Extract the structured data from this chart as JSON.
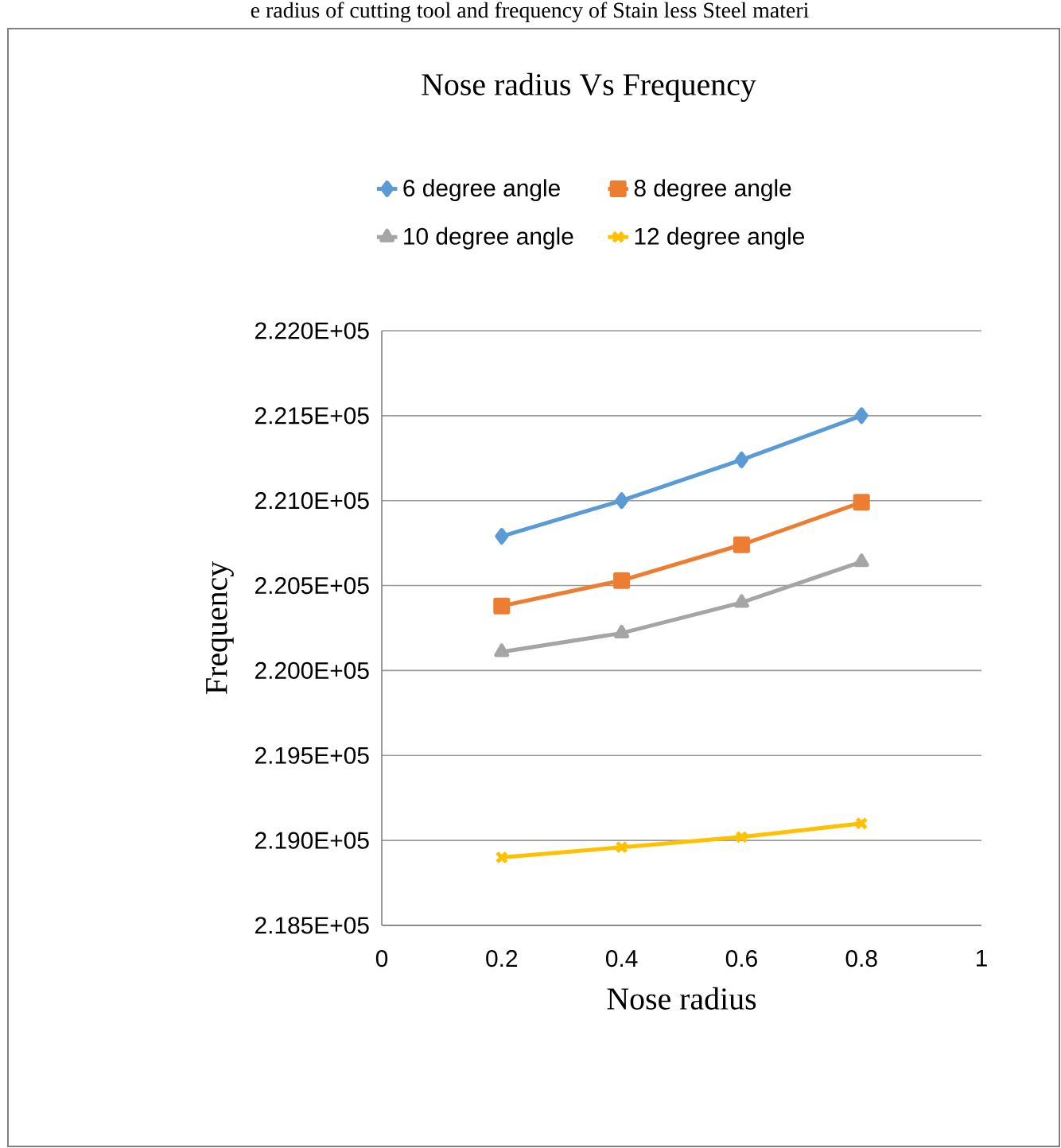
{
  "chart_data": {
    "type": "line",
    "title": "Nose radius Vs Frequency",
    "xlabel": "Nose radius",
    "ylabel": "Frequency",
    "annotations": [
      "e radius of cutting tool and frequency of Stain less Steel materi"
    ],
    "x": [
      0.2,
      0.4,
      0.6,
      0.8
    ],
    "series": [
      {
        "name": "6 degree angle",
        "color": "#5b9bd5",
        "marker": "diamond",
        "values": [
          220790,
          221000,
          221240,
          221500
        ]
      },
      {
        "name": "8 degree angle",
        "color": "#ed7d31",
        "marker": "square",
        "values": [
          220380,
          220530,
          220740,
          220990
        ]
      },
      {
        "name": "10 degree angle",
        "color": "#a5a5a5",
        "marker": "triangle",
        "values": [
          220110,
          220220,
          220400,
          220640
        ]
      },
      {
        "name": "12 degree angle",
        "color": "#ffc000",
        "marker": "cross",
        "values": [
          218900,
          218960,
          219020,
          219100
        ]
      }
    ],
    "xlim": [
      0,
      1
    ],
    "xticks": [
      0,
      0.2,
      0.4,
      0.6,
      0.8,
      1
    ],
    "ylim": [
      218500,
      222000
    ],
    "yticks": [
      {
        "value": 218500,
        "label": "2.185E+05"
      },
      {
        "value": 219000,
        "label": "2.190E+05"
      },
      {
        "value": 219500,
        "label": "2.195E+05"
      },
      {
        "value": 220000,
        "label": "2.200E+05"
      },
      {
        "value": 220500,
        "label": "2.205E+05"
      },
      {
        "value": 221000,
        "label": "2.210E+05"
      },
      {
        "value": 221500,
        "label": "2.215E+05"
      },
      {
        "value": 222000,
        "label": "2.220E+05"
      }
    ],
    "grid": "y",
    "legend": "top",
    "line_style": "solid"
  }
}
